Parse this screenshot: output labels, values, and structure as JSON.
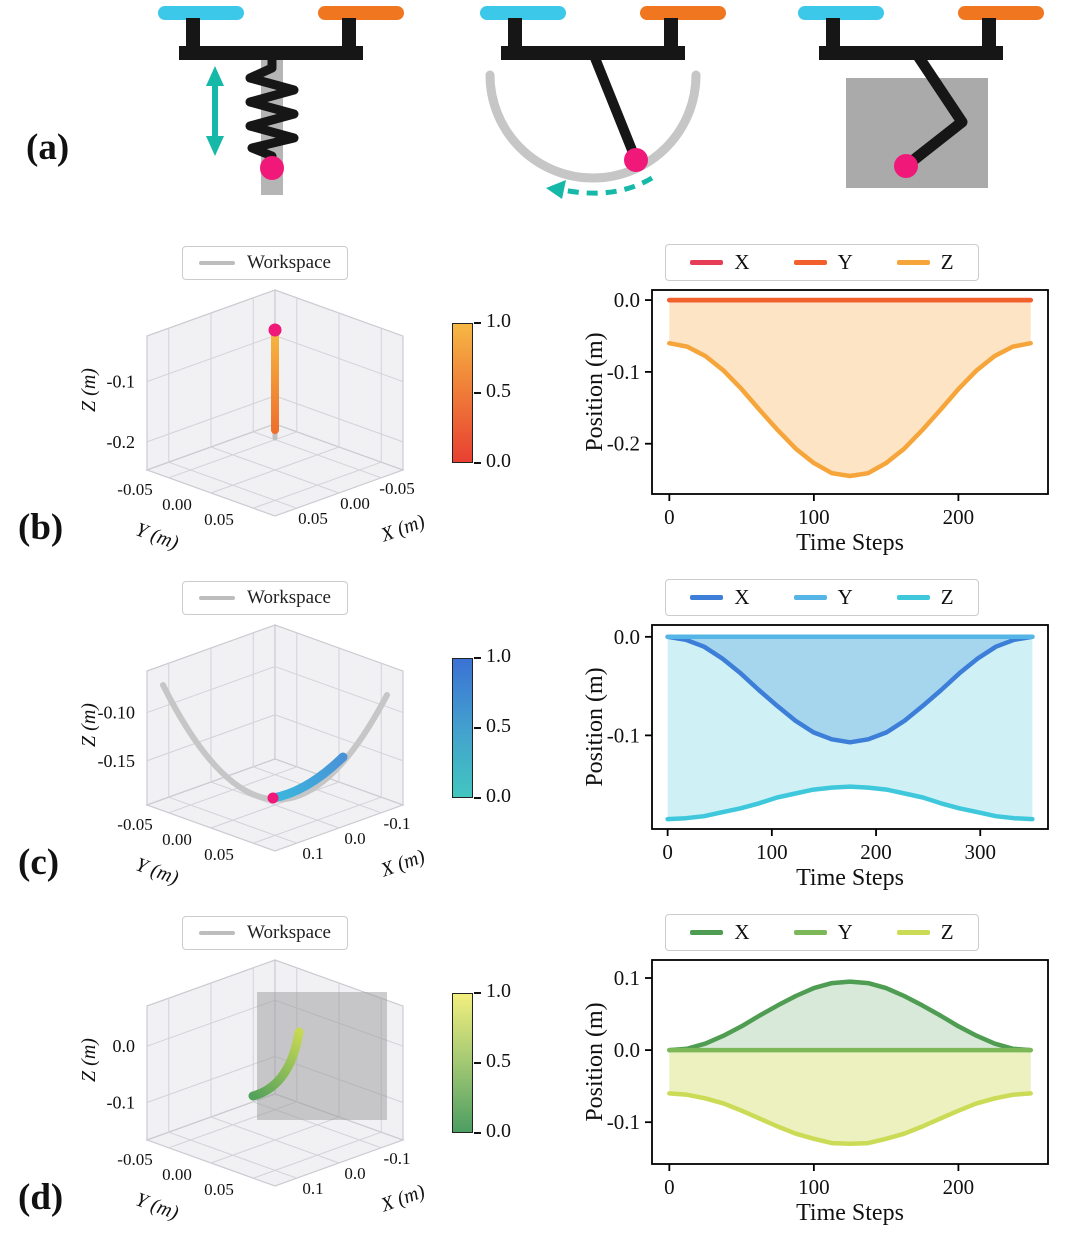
{
  "colors": {
    "cyan_bar": "#3cc8e8",
    "orange_bar": "#f0761f",
    "pink_marker": "#f01878",
    "teal_arrow": "#16b8a8",
    "black_link": "#161616",
    "gray_workspace": "#c2c2c2"
  },
  "figure": {
    "labels": {
      "a": "(a)",
      "b": "(b)",
      "c": "(c)",
      "d": "(d)"
    }
  },
  "panels": {
    "b": {
      "workspace_legend": "Workspace",
      "plot3d": {
        "zlabel": "Z (m)",
        "ylabel": "Y (m)",
        "xlabel": "X (m)",
        "zticks": [
          "-0.1",
          "-0.2"
        ],
        "yticks": [
          "-0.05",
          "0.00",
          "0.05"
        ],
        "xticks": [
          "0.05",
          "0.00",
          "-0.05"
        ]
      },
      "colorbar": {
        "ticks": [
          "1.0",
          "0.5",
          "0.0"
        ],
        "top": "#f6b843",
        "mid": "#ef7b38",
        "bottom": "#e84032"
      }
    },
    "c": {
      "workspace_legend": "Workspace",
      "plot3d": {
        "zlabel": "Z (m)",
        "ylabel": "Y (m)",
        "xlabel": "X (m)",
        "zticks": [
          "-0.10",
          "-0.15"
        ],
        "yticks": [
          "-0.05",
          "0.00",
          "0.05"
        ],
        "xticks": [
          "0.1",
          "0.0",
          "-0.1"
        ]
      },
      "colorbar": {
        "ticks": [
          "1.0",
          "0.5",
          "0.0"
        ],
        "top": "#3b72d4",
        "mid": "#43a0ce",
        "bottom": "#42c6c0"
      }
    },
    "d": {
      "workspace_legend": "Workspace",
      "plot3d": {
        "zlabel": "Z (m)",
        "ylabel": "Y (m)",
        "xlabel": "X (m)",
        "zticks": [
          "0.0",
          "-0.1"
        ],
        "yticks": [
          "-0.05",
          "0.00",
          "0.05"
        ],
        "xticks": [
          "0.1",
          "0.0",
          "-0.1"
        ]
      },
      "colorbar": {
        "ticks": [
          "1.0",
          "0.5",
          "0.0"
        ],
        "top": "#f2ef7e",
        "mid": "#a2c873",
        "bottom": "#4c9e62"
      }
    }
  },
  "chart_data": [
    {
      "panel": "b",
      "type": "line",
      "xlabel": "Time Steps",
      "ylabel": "Position (m)",
      "xlim": [
        -12,
        262
      ],
      "ylim": [
        -0.27,
        0.014
      ],
      "xticks": [
        0,
        100,
        200
      ],
      "xtick_labels": [
        "0",
        "100",
        "200"
      ],
      "yticks": [
        0.0,
        -0.1,
        -0.2
      ],
      "ytick_labels": [
        "0.0",
        "-0.1",
        "-0.2"
      ],
      "legend_position": "top",
      "grid": false,
      "x": [
        0,
        12.5,
        25,
        37.5,
        50,
        62.5,
        75,
        87.5,
        100,
        112.5,
        125,
        137.5,
        150,
        162.5,
        175,
        187.5,
        200,
        212.5,
        225,
        237.5,
        250
      ],
      "series": [
        {
          "name": "X",
          "color": "#e73e57",
          "fill": null,
          "values": [
            0,
            0,
            0,
            0,
            0,
            0,
            0,
            0,
            0,
            0,
            0,
            0,
            0,
            0,
            0,
            0,
            0,
            0,
            0,
            0,
            0
          ]
        },
        {
          "name": "Y",
          "color": "#f2602b",
          "fill": null,
          "values": [
            0,
            0,
            0,
            0,
            0,
            0,
            0,
            0,
            0,
            0,
            0,
            0,
            0,
            0,
            0,
            0,
            0,
            0,
            0,
            0,
            0
          ]
        },
        {
          "name": "Z",
          "color": "#f6a53a",
          "fill": "rgba(246,165,58,0.30)",
          "values": [
            -0.06,
            -0.065,
            -0.078,
            -0.098,
            -0.124,
            -0.153,
            -0.181,
            -0.207,
            -0.227,
            -0.241,
            -0.245,
            -0.241,
            -0.227,
            -0.207,
            -0.181,
            -0.153,
            -0.124,
            -0.098,
            -0.078,
            -0.065,
            -0.06
          ]
        }
      ]
    },
    {
      "panel": "c",
      "type": "line",
      "xlabel": "Time Steps",
      "ylabel": "Position (m)",
      "xlim": [
        -15,
        365
      ],
      "ylim": [
        -0.195,
        0.012
      ],
      "xticks": [
        0,
        100,
        200,
        300
      ],
      "xtick_labels": [
        "0",
        "100",
        "200",
        "300"
      ],
      "yticks": [
        0.0,
        -0.1
      ],
      "ytick_labels": [
        "0.0",
        "-0.1"
      ],
      "legend_position": "top",
      "grid": false,
      "x": [
        0,
        17.5,
        35,
        52.5,
        70,
        87.5,
        105,
        122.5,
        140,
        157.5,
        175,
        192.5,
        210,
        227.5,
        245,
        262.5,
        280,
        297.5,
        315,
        332.5,
        350
      ],
      "series": [
        {
          "name": "X",
          "color": "#3d7ed8",
          "fill": "rgba(61,126,216,0.28)",
          "values": [
            0,
            -0.003,
            -0.01,
            -0.022,
            -0.037,
            -0.054,
            -0.07,
            -0.085,
            -0.097,
            -0.104,
            -0.107,
            -0.104,
            -0.097,
            -0.085,
            -0.07,
            -0.054,
            -0.037,
            -0.022,
            -0.01,
            -0.003,
            0
          ]
        },
        {
          "name": "Y",
          "color": "#55b5e6",
          "fill": null,
          "values": [
            0,
            0,
            0,
            0,
            0,
            0,
            0,
            0,
            0,
            0,
            0,
            0,
            0,
            0,
            0,
            0,
            0,
            0,
            0,
            0,
            0
          ]
        },
        {
          "name": "Z",
          "color": "#3fc8dc",
          "fill": "rgba(63,200,220,0.25)",
          "values": [
            -0.185,
            -0.184,
            -0.182,
            -0.178,
            -0.174,
            -0.169,
            -0.163,
            -0.159,
            -0.155,
            -0.153,
            -0.152,
            -0.153,
            -0.155,
            -0.159,
            -0.163,
            -0.169,
            -0.174,
            -0.178,
            -0.182,
            -0.184,
            -0.185
          ]
        }
      ]
    },
    {
      "panel": "d",
      "type": "line",
      "xlabel": "Time Steps",
      "ylabel": "Position (m)",
      "xlim": [
        -12,
        262
      ],
      "ylim": [
        -0.158,
        0.125
      ],
      "xticks": [
        0,
        100,
        200
      ],
      "xtick_labels": [
        "0",
        "100",
        "200"
      ],
      "yticks": [
        0.1,
        0.0,
        -0.1
      ],
      "ytick_labels": [
        "0.1",
        "0.0",
        "-0.1"
      ],
      "legend_position": "top",
      "grid": false,
      "x": [
        0,
        12.5,
        25,
        37.5,
        50,
        62.5,
        75,
        87.5,
        100,
        112.5,
        125,
        137.5,
        150,
        162.5,
        175,
        187.5,
        200,
        212.5,
        225,
        237.5,
        250
      ],
      "series": [
        {
          "name": "X",
          "color": "#4f9d52",
          "fill": "rgba(79,157,82,0.22)",
          "values": [
            0,
            0.002,
            0.009,
            0.02,
            0.033,
            0.048,
            0.062,
            0.075,
            0.086,
            0.093,
            0.095,
            0.093,
            0.086,
            0.075,
            0.062,
            0.048,
            0.033,
            0.02,
            0.009,
            0.002,
            0
          ]
        },
        {
          "name": "Y",
          "color": "#7cb75a",
          "fill": null,
          "values": [
            0,
            0,
            0,
            0,
            0,
            0,
            0,
            0,
            0,
            0,
            0,
            0,
            0,
            0,
            0,
            0,
            0,
            0,
            0,
            0,
            0
          ]
        },
        {
          "name": "Z",
          "color": "#ccdb56",
          "fill": "rgba(204,219,86,0.38)",
          "values": [
            -0.06,
            -0.062,
            -0.067,
            -0.074,
            -0.084,
            -0.095,
            -0.106,
            -0.116,
            -0.123,
            -0.129,
            -0.13,
            -0.129,
            -0.123,
            -0.116,
            -0.106,
            -0.095,
            -0.084,
            -0.074,
            -0.067,
            -0.062,
            -0.06
          ]
        }
      ]
    }
  ]
}
